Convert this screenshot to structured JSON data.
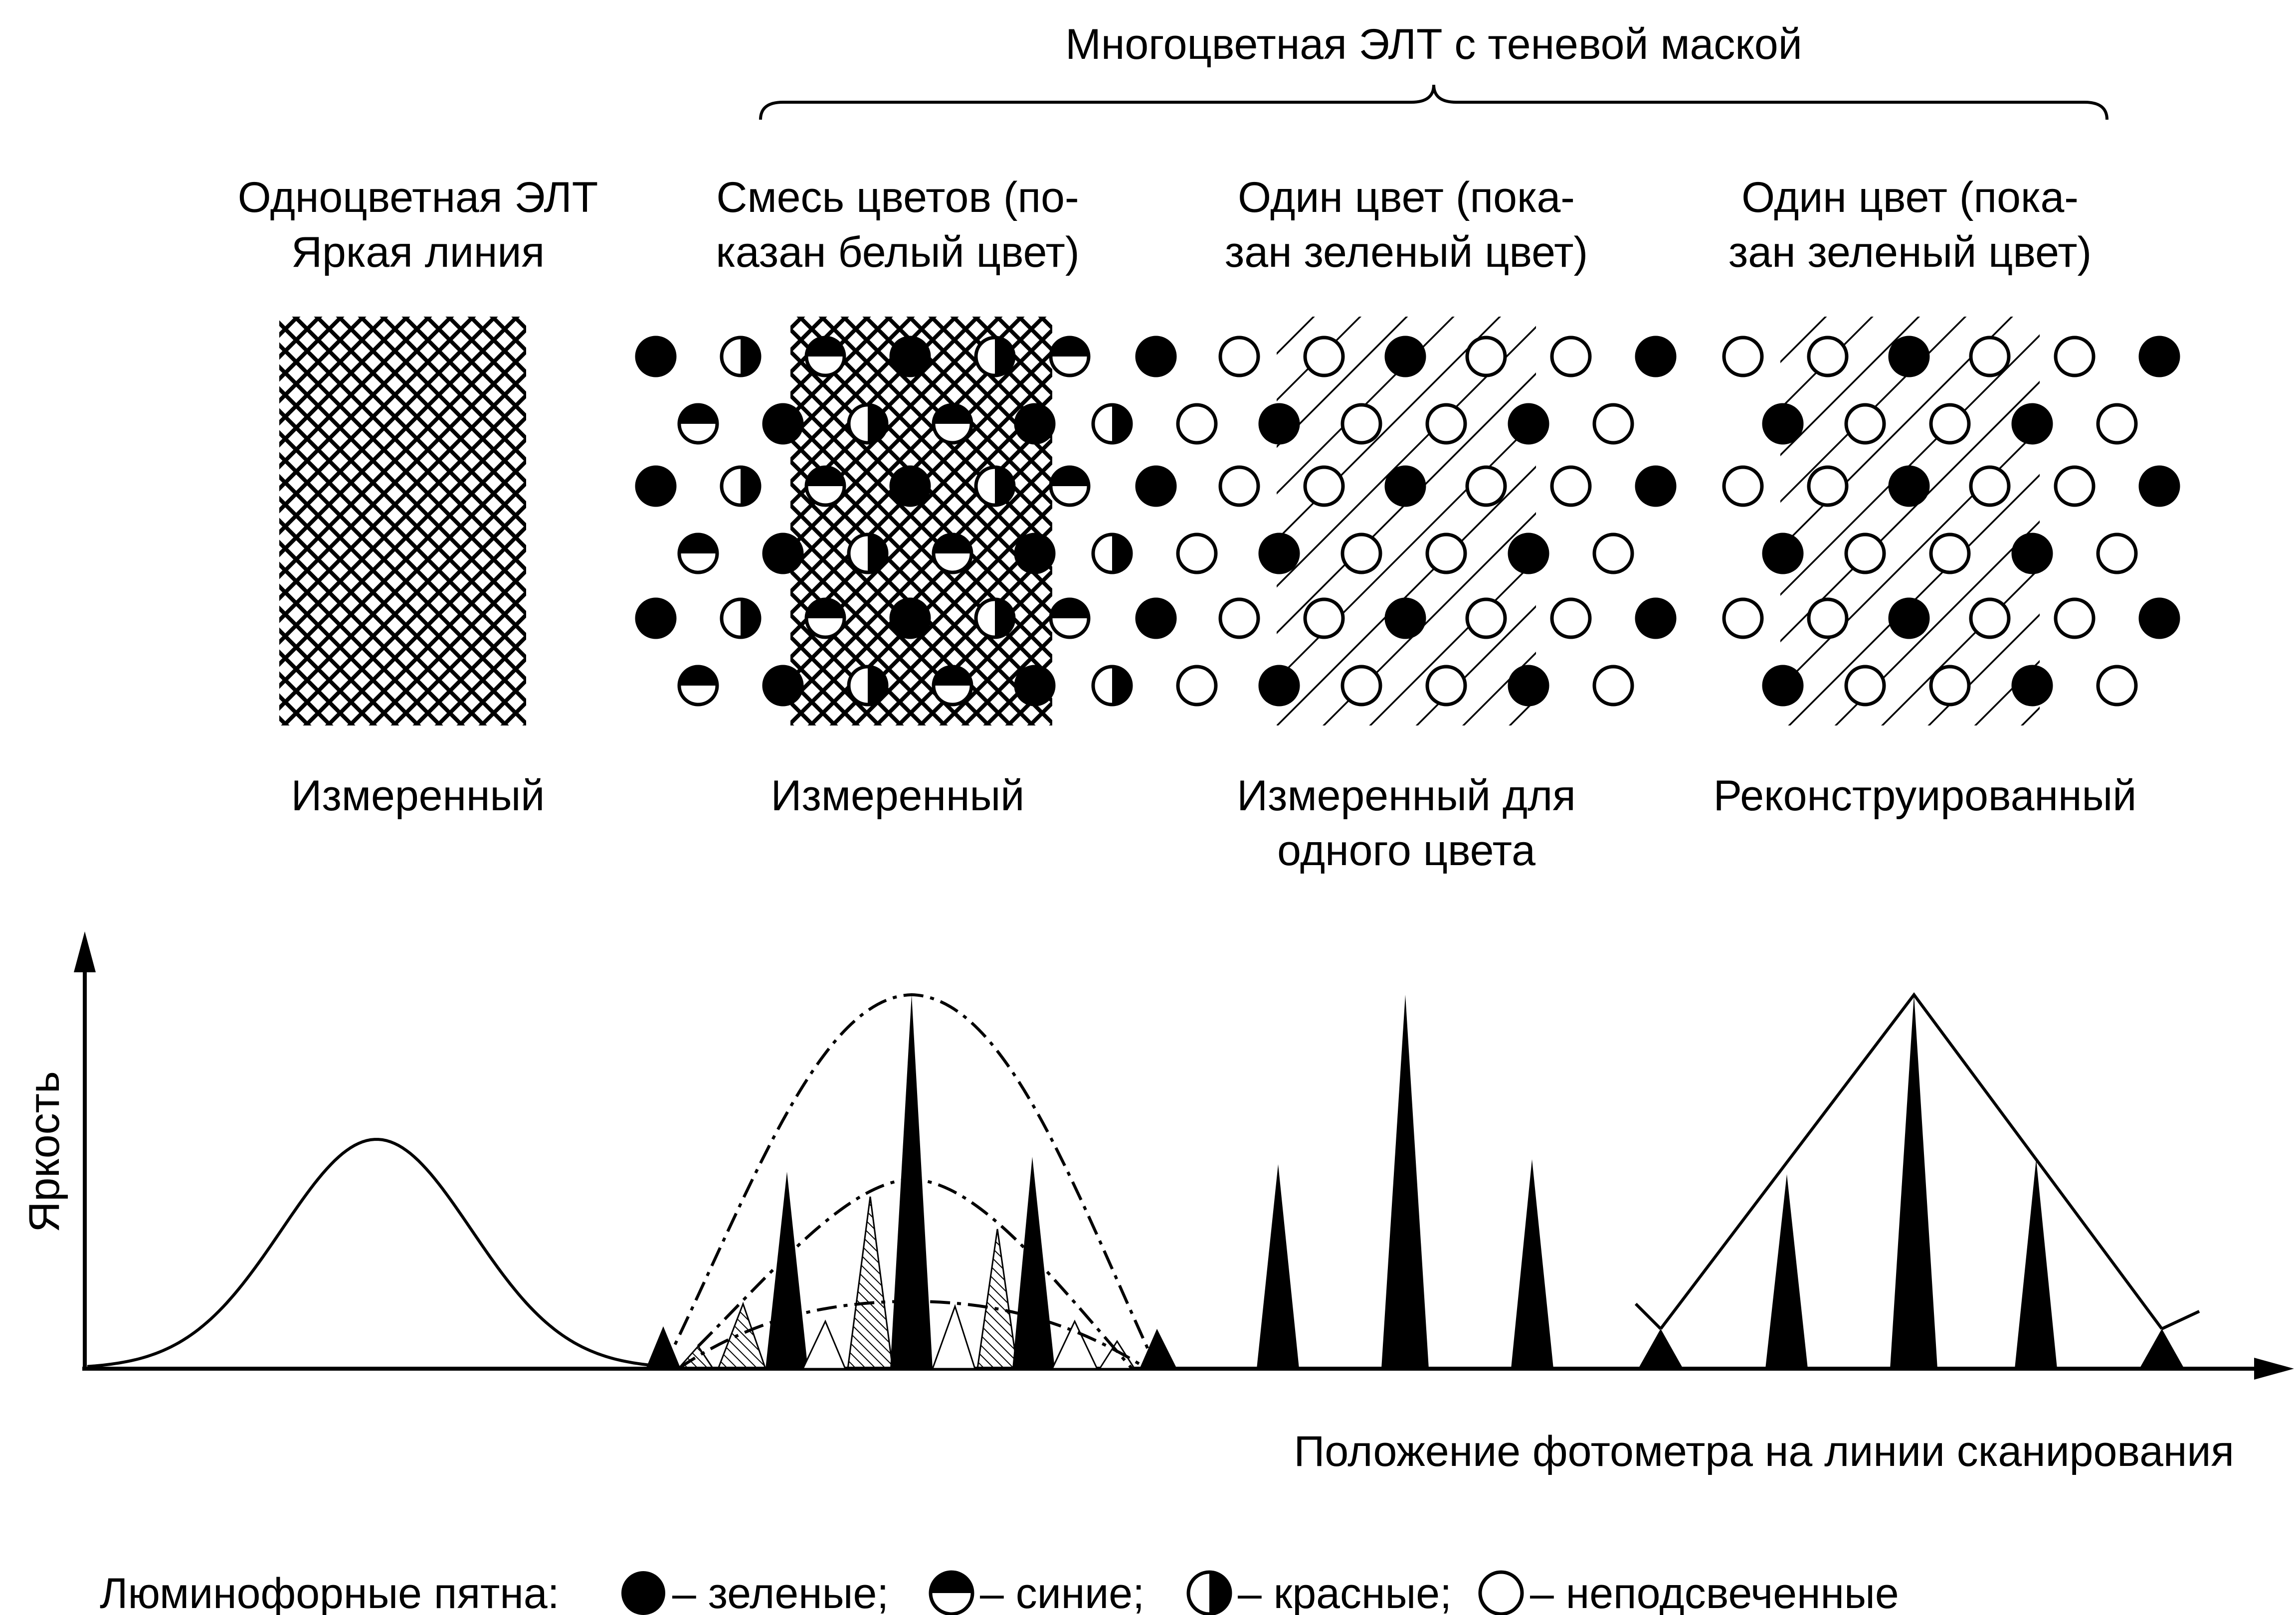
{
  "title": "Многоцветная ЭЛТ с теневой маской",
  "panels": [
    {
      "header_1": "Одноцветная ЭЛТ",
      "header_2": "Яркая линия",
      "footer_1": "Измеренный",
      "footer_2": ""
    },
    {
      "header_1": "Смесь цветов (по-",
      "header_2": "казан белый цвет)",
      "footer_1": "Измеренный",
      "footer_2": ""
    },
    {
      "header_1": "Один цвет (пока-",
      "header_2": "зан зеленый цвет)",
      "footer_1": "Измеренный для",
      "footer_2": "одного цвета"
    },
    {
      "header_1": "Один цвет (пока-",
      "header_2": "зан зеленый цвет)",
      "footer_1": "Реконструированный",
      "footer_2": ""
    }
  ],
  "graph": {
    "y_label": "Яркость",
    "x_label": "Положение фотометра на линии сканирования"
  },
  "legend": {
    "prefix": "Люминофорные пятна:",
    "green": "– зеленые;",
    "blue": "– синие;",
    "red": "– красные;",
    "unlit": "– неподсвеченные"
  },
  "phosphor_types": [
    "green",
    "blue",
    "red",
    "unlit"
  ],
  "colors": {
    "ink": "#000000",
    "paper": "#ffffff"
  }
}
